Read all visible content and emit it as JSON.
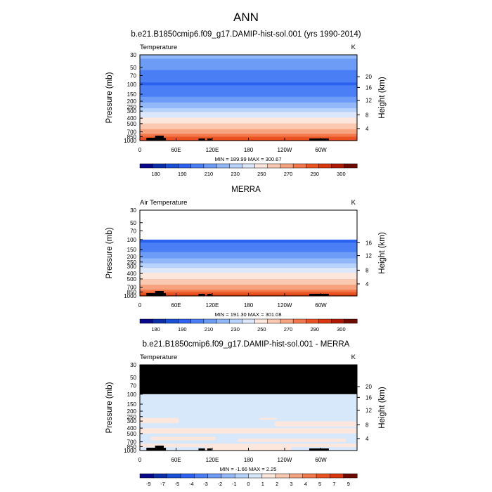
{
  "main_title": "ANN",
  "chart_data": [
    {
      "type": "heatmap",
      "title": "b.e21.B1850cmip6.f09_g17.DAMIP-hist-sol.001 (yrs 1990-2014)",
      "left_label": "Temperature",
      "units": "K",
      "xlabel": "",
      "ylabel": "Pressure (mb)",
      "ylabel_right": "Height (km)",
      "x_ticks": [
        "0",
        "60E",
        "120E",
        "180",
        "120W",
        "60W"
      ],
      "y_ticks": [
        "30",
        "50",
        "70",
        "100",
        "150",
        "200",
        "250",
        "300",
        "400",
        "500",
        "700",
        "850",
        "1000"
      ],
      "y_ticks_right": [
        "20",
        "16",
        "12",
        "8",
        "4"
      ],
      "y_range_mb": [
        30,
        1000
      ],
      "stats": "MIN = 189.99  MAX = 300.67",
      "colorbar_labels": [
        "180",
        "190",
        "210",
        "230",
        "250",
        "270",
        "290",
        "300"
      ],
      "profile_p": [
        30,
        50,
        70,
        100,
        150,
        200,
        250,
        300,
        400,
        500,
        700,
        850,
        1000
      ],
      "profile_t": [
        224,
        212,
        205,
        199,
        207,
        217,
        227,
        238,
        251,
        260,
        275,
        285,
        291
      ]
    },
    {
      "type": "heatmap",
      "title": "MERRA",
      "left_label": "Air Temperature",
      "units": "K",
      "xlabel": "",
      "ylabel": "Pressure (mb)",
      "ylabel_right": "Height (km)",
      "x_ticks": [
        "0",
        "60E",
        "120E",
        "180",
        "120W",
        "60W"
      ],
      "y_ticks": [
        "30",
        "50",
        "70",
        "100",
        "150",
        "200",
        "250",
        "300",
        "400",
        "500",
        "700",
        "850",
        "1000"
      ],
      "y_ticks_right": [
        "16",
        "12",
        "8",
        "4"
      ],
      "y_range_mb": [
        30,
        1000
      ],
      "stats": "MIN = 191.30  MAX = 301.08",
      "colorbar_labels": [
        "180",
        "190",
        "210",
        "230",
        "250",
        "270",
        "290",
        "300"
      ],
      "profile_p": [
        100,
        150,
        200,
        250,
        300,
        400,
        500,
        700,
        850,
        1000
      ],
      "profile_t": [
        197,
        206,
        217,
        227,
        238,
        251,
        260,
        275,
        285,
        292
      ]
    },
    {
      "type": "heatmap",
      "title": "b.e21.B1850cmip6.f09_g17.DAMIP-hist-sol.001 - MERRA",
      "left_label": "Temperature",
      "units": "K",
      "xlabel": "",
      "ylabel": "Pressure (mb)",
      "ylabel_right": "Height (km)",
      "x_ticks": [
        "0",
        "60E",
        "120E",
        "180",
        "120W",
        "60W"
      ],
      "y_ticks": [
        "30",
        "50",
        "70",
        "100",
        "150",
        "200",
        "250",
        "300",
        "400",
        "500",
        "700",
        "850",
        "1000"
      ],
      "y_ticks_right": [
        "20",
        "16",
        "12",
        "8",
        "4"
      ],
      "y_range_mb": [
        30,
        1000
      ],
      "stats": "MIN = -1.66  MAX =  2.25",
      "colorbar_labels": [
        "-9",
        "-7",
        "-5",
        "-4",
        "-3",
        "-2",
        "-1",
        "0",
        "1",
        "2",
        "3",
        "4",
        "5",
        "7",
        "9"
      ],
      "missing_above_mb": 100
    }
  ],
  "colors": {
    "temp_scale": [
      "#08088c",
      "#0a2fa8",
      "#1850d6",
      "#2d62f0",
      "#4a7ff5",
      "#6d9cf6",
      "#93b8f9",
      "#b7d2fb",
      "#dce7fb",
      "#fde6dc",
      "#fbc9b1",
      "#f7a37f",
      "#f3784b",
      "#ea5422",
      "#d8390f",
      "#b01a05",
      "#6e0a00"
    ],
    "diff_scale": [
      "#08088c",
      "#0a2fa8",
      "#1850d6",
      "#2d62f0",
      "#4a7ff5",
      "#6d9cf6",
      "#93b8f9",
      "#b7d2fb",
      "#d7e8fb",
      "#fde6dc",
      "#fbc9b1",
      "#f7a37f",
      "#f3784b",
      "#ea5422",
      "#d8390f",
      "#6e0a00"
    ],
    "missing": "#000000"
  }
}
